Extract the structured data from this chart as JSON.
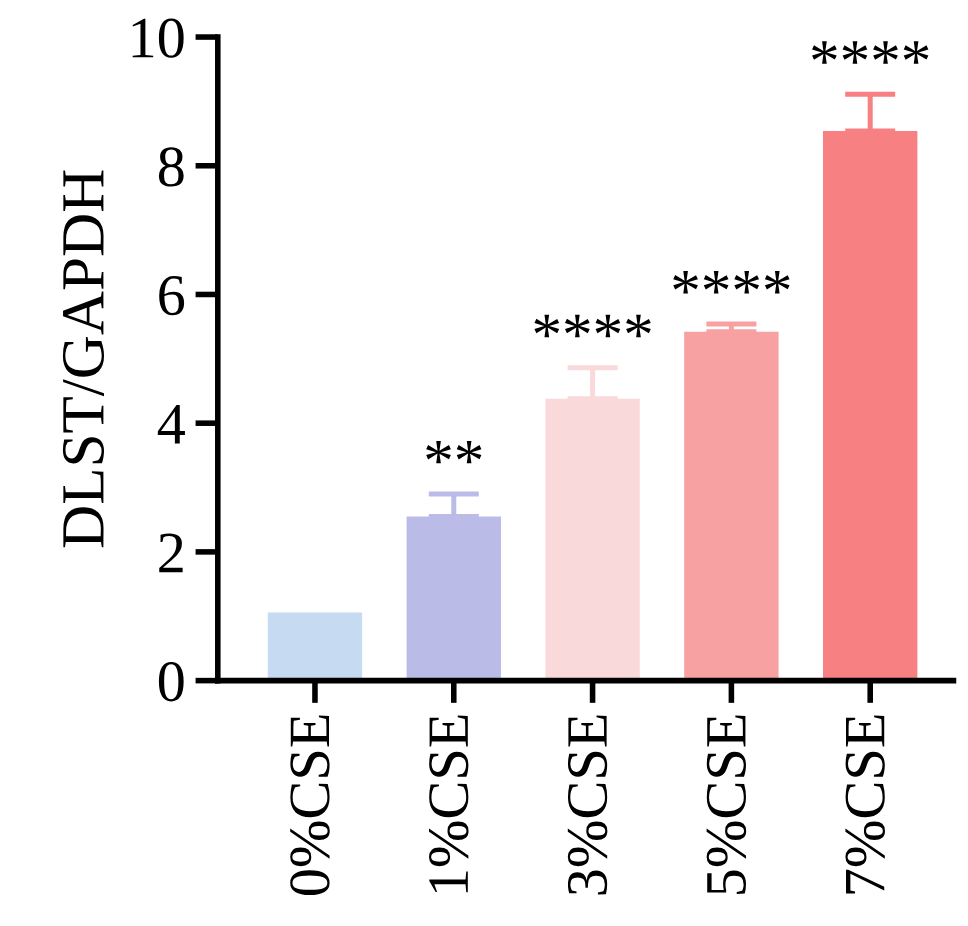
{
  "chart_data": {
    "type": "bar",
    "ylabel": "DLST/GAPDH",
    "categories": [
      "0%CSE",
      "1%CSE",
      "3%CSE",
      "5%CSE",
      "7%CSE"
    ],
    "values": [
      1.06,
      2.55,
      4.38,
      5.42,
      8.54
    ],
    "errors": [
      null,
      [
        2.55,
        2.9
      ],
      [
        4.38,
        4.86
      ],
      [
        5.42,
        5.54
      ],
      [
        8.54,
        9.11
      ]
    ],
    "colors": [
      "#c6daf1",
      "#bbbbe7",
      "#f9d9da",
      "#f7a1a2",
      "#f78182"
    ],
    "ylim": [
      0,
      10
    ],
    "yticks": [
      0,
      2,
      4,
      6,
      8,
      10
    ],
    "grid": false,
    "legend": false,
    "annotations": [
      {
        "text": "**",
        "x": "1%CSE",
        "y": 2.9
      },
      {
        "text": "****",
        "x": "3%CSE",
        "y": 4.86
      },
      {
        "text": "****",
        "x": "5%CSE",
        "y": 5.54
      },
      {
        "text": "****",
        "x": "7%CSE",
        "y": 9.11
      }
    ]
  }
}
